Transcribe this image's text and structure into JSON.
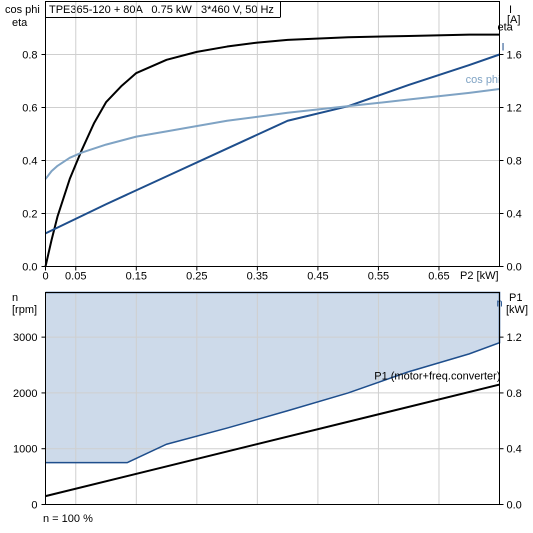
{
  "chart_data": [
    {
      "type": "line",
      "title": "TPE365-120 + 80A   0.75 kW   3*460 V, 50 Hz",
      "left_axis_label": [
        "cos phi",
        "eta"
      ],
      "right_axis_label": [
        "I",
        "[A]"
      ],
      "xlabel": "P2 [kW]",
      "x_ticks": [
        "0",
        "0.05",
        "0.15",
        "0.25",
        "0.35",
        "0.45",
        "0.55",
        "0.65"
      ],
      "x_tick_values": [
        0,
        0.05,
        0.15,
        0.25,
        0.35,
        0.45,
        0.55,
        0.65
      ],
      "xlim": [
        0,
        0.75
      ],
      "y_ticks": [
        "0.0",
        "0.2",
        "0.4",
        "0.6",
        "0.8"
      ],
      "ylim": [
        0,
        1.0
      ],
      "y2_ticks": [
        "0.0",
        "0.4",
        "0.8",
        "1.2",
        "1.6"
      ],
      "y2lim": [
        0,
        2.0
      ],
      "grid": true,
      "series": [
        {
          "name": "eta",
          "axis": "left",
          "color": "#000000",
          "x": [
            0,
            0.01,
            0.02,
            0.04,
            0.06,
            0.08,
            0.1,
            0.125,
            0.15,
            0.2,
            0.25,
            0.3,
            0.35,
            0.4,
            0.5,
            0.6,
            0.7,
            0.75
          ],
          "y": [
            0.0,
            0.1,
            0.19,
            0.33,
            0.44,
            0.54,
            0.62,
            0.68,
            0.73,
            0.78,
            0.81,
            0.83,
            0.845,
            0.855,
            0.865,
            0.87,
            0.875,
            0.875
          ]
        },
        {
          "name": "I",
          "axis": "right",
          "color": "#1e4e8c",
          "x": [
            0,
            0.1,
            0.2,
            0.3,
            0.4,
            0.5,
            0.6,
            0.7,
            0.75
          ],
          "y": [
            0.25,
            0.47,
            0.68,
            0.89,
            1.1,
            1.21,
            1.37,
            1.52,
            1.6
          ]
        },
        {
          "name": "cos phi",
          "axis": "left",
          "color": "#7fa3c4",
          "x": [
            0,
            0.01,
            0.02,
            0.04,
            0.06,
            0.1,
            0.15,
            0.2,
            0.3,
            0.4,
            0.5,
            0.6,
            0.7,
            0.75
          ],
          "y": [
            0.33,
            0.36,
            0.38,
            0.41,
            0.43,
            0.46,
            0.49,
            0.51,
            0.55,
            0.58,
            0.605,
            0.63,
            0.655,
            0.67
          ]
        }
      ]
    },
    {
      "type": "area",
      "left_axis_label": [
        "n",
        "[rpm]"
      ],
      "right_axis_label": [
        "P1",
        "[kW]"
      ],
      "x_ticks": [],
      "xlim": [
        0,
        0.75
      ],
      "y_ticks": [
        "0",
        "1000",
        "2000",
        "3000"
      ],
      "ylim": [
        0,
        3800
      ],
      "y2_ticks": [
        "0.0",
        "0.4",
        "0.8",
        "1.2"
      ],
      "y2lim": [
        0,
        1.52
      ],
      "grid": true,
      "footnote": "n = 100 %",
      "series": [
        {
          "name": "n",
          "axis": "left",
          "color": "#1e4e8c",
          "fill": "#cddaea",
          "upper": {
            "x": [
              0,
              0.75
            ],
            "y": [
              3800,
              3800
            ]
          },
          "lower": {
            "x": [
              0,
              0.135,
              0.2,
              0.3,
              0.4,
              0.5,
              0.6,
              0.7,
              0.75
            ],
            "y": [
              750,
              750,
              1080,
              1370,
              1680,
              2000,
              2380,
              2700,
              2900
            ]
          }
        },
        {
          "name": "P1 (motor+freq.converter)",
          "axis": "right",
          "color": "#000000",
          "x": [
            0,
            0.75
          ],
          "y": [
            0.06,
            0.86
          ]
        }
      ]
    }
  ]
}
